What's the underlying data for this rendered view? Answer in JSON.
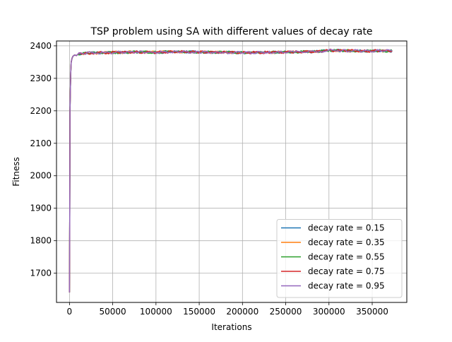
{
  "chart_data": {
    "type": "line",
    "title": "TSP problem using SA with different values of decay rate",
    "xlabel": "Iterations",
    "ylabel": "Fitness",
    "xlim": [
      -15000,
      390000
    ],
    "ylim": [
      1610,
      2415
    ],
    "xticks": [
      0,
      50000,
      100000,
      150000,
      200000,
      250000,
      300000,
      350000
    ],
    "yticks": [
      1700,
      1800,
      1900,
      2000,
      2100,
      2200,
      2300,
      2400
    ],
    "grid": true,
    "legend_position": "lower-right",
    "series": [
      {
        "name": "decay rate = 0.15",
        "color": "#1f77b4",
        "x": [
          0,
          300,
          600,
          1000,
          1500,
          2000,
          3000,
          4000,
          6000,
          8000,
          10000,
          15000,
          20000,
          30000,
          40000,
          60000,
          80000,
          100000,
          120000,
          150000,
          180000,
          200000,
          230000,
          260000,
          290000,
          300000,
          320000,
          340000,
          360000,
          373000
        ],
        "y": [
          1641,
          1860,
          2200,
          2260,
          2320,
          2350,
          2362,
          2368,
          2372,
          2370,
          2375,
          2376,
          2378,
          2378,
          2379,
          2380,
          2381,
          2380,
          2382,
          2381,
          2380,
          2379,
          2380,
          2381,
          2383,
          2386,
          2385,
          2384,
          2385,
          2384
        ]
      },
      {
        "name": "decay rate = 0.35",
        "color": "#ff7f0e",
        "x": [
          0,
          300,
          600,
          1000,
          1500,
          2000,
          3000,
          4000,
          6000,
          8000,
          10000,
          15000,
          20000,
          30000,
          40000,
          60000,
          80000,
          100000,
          120000,
          150000,
          180000,
          200000,
          230000,
          260000,
          290000,
          300000,
          320000,
          340000,
          360000,
          373000
        ],
        "y": [
          1641,
          1860,
          2200,
          2260,
          2320,
          2350,
          2362,
          2368,
          2372,
          2370,
          2375,
          2376,
          2378,
          2378,
          2379,
          2380,
          2381,
          2380,
          2382,
          2381,
          2380,
          2379,
          2380,
          2381,
          2383,
          2386,
          2385,
          2384,
          2385,
          2384
        ]
      },
      {
        "name": "decay rate = 0.55",
        "color": "#2ca02c",
        "x": [
          0,
          300,
          600,
          1000,
          1500,
          2000,
          3000,
          4000,
          6000,
          8000,
          10000,
          15000,
          20000,
          30000,
          40000,
          60000,
          80000,
          100000,
          120000,
          150000,
          180000,
          200000,
          230000,
          260000,
          290000,
          300000,
          320000,
          340000,
          360000,
          373000
        ],
        "y": [
          1641,
          1860,
          2200,
          2260,
          2320,
          2350,
          2362,
          2368,
          2372,
          2370,
          2375,
          2376,
          2378,
          2378,
          2379,
          2380,
          2381,
          2380,
          2382,
          2381,
          2380,
          2379,
          2380,
          2381,
          2383,
          2386,
          2385,
          2384,
          2385,
          2384
        ]
      },
      {
        "name": "decay rate = 0.75",
        "color": "#d62728",
        "x": [
          0,
          300,
          600,
          1000,
          1500,
          2000,
          3000,
          4000,
          6000,
          8000,
          10000,
          15000,
          20000,
          30000,
          40000,
          60000,
          80000,
          100000,
          120000,
          150000,
          180000,
          200000,
          230000,
          260000,
          290000,
          300000,
          320000,
          340000,
          360000,
          373000
        ],
        "y": [
          1641,
          1860,
          2200,
          2260,
          2320,
          2350,
          2362,
          2368,
          2372,
          2370,
          2375,
          2376,
          2378,
          2378,
          2379,
          2380,
          2381,
          2380,
          2382,
          2381,
          2380,
          2379,
          2380,
          2381,
          2383,
          2386,
          2385,
          2384,
          2385,
          2384
        ]
      },
      {
        "name": "decay rate = 0.95",
        "color": "#9467bd",
        "x": [
          0,
          300,
          600,
          1000,
          1500,
          2000,
          3000,
          4000,
          6000,
          8000,
          10000,
          15000,
          20000,
          30000,
          40000,
          60000,
          80000,
          100000,
          120000,
          150000,
          180000,
          200000,
          230000,
          260000,
          290000,
          300000,
          320000,
          340000,
          360000,
          373000
        ],
        "y": [
          1641,
          1860,
          2200,
          2260,
          2320,
          2350,
          2362,
          2368,
          2372,
          2370,
          2375,
          2376,
          2378,
          2378,
          2379,
          2380,
          2381,
          2380,
          2382,
          2381,
          2380,
          2379,
          2380,
          2381,
          2383,
          2386,
          2385,
          2384,
          2385,
          2384
        ]
      }
    ]
  }
}
